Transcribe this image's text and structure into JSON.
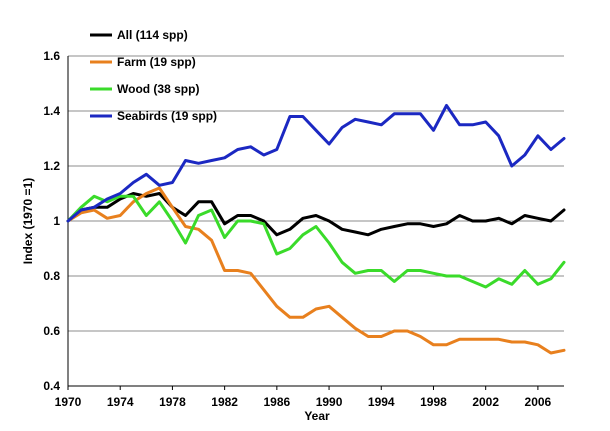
{
  "chart_data": {
    "type": "line",
    "xlabel": "Year",
    "ylabel": "Index (1970 =1)",
    "xlim": [
      1970,
      2008
    ],
    "ylim": [
      0.4,
      1.6
    ],
    "x_ticks": [
      "1970",
      "1974",
      "1978",
      "1982",
      "1986",
      "1990",
      "1994",
      "1998",
      "2002",
      "2006"
    ],
    "y_ticks": [
      "0.4",
      "0.6",
      "0.8",
      "1",
      "1.2",
      "1.4",
      "1.6"
    ],
    "grid": "horizontal",
    "legend_position": "top-left",
    "x": [
      1970,
      1971,
      1972,
      1973,
      1974,
      1975,
      1976,
      1977,
      1978,
      1979,
      1980,
      1981,
      1982,
      1983,
      1984,
      1985,
      1986,
      1987,
      1988,
      1989,
      1990,
      1991,
      1992,
      1993,
      1994,
      1995,
      1996,
      1997,
      1998,
      1999,
      2000,
      2001,
      2002,
      2003,
      2004,
      2005,
      2006,
      2007,
      2008
    ],
    "series": [
      {
        "name": "All (114 spp)",
        "color": "#000000",
        "values": [
          1.0,
          1.04,
          1.05,
          1.05,
          1.08,
          1.1,
          1.09,
          1.1,
          1.05,
          1.02,
          1.07,
          1.07,
          0.99,
          1.02,
          1.02,
          1.0,
          0.95,
          0.97,
          1.01,
          1.02,
          1.0,
          0.97,
          0.96,
          0.95,
          0.97,
          0.98,
          0.99,
          0.99,
          0.98,
          0.99,
          1.02,
          1.0,
          1.0,
          1.01,
          0.99,
          1.02,
          1.01,
          1.0,
          1.04
        ]
      },
      {
        "name": "Farm (19 spp)",
        "color": "#E8801E",
        "values": [
          1.0,
          1.03,
          1.04,
          1.01,
          1.02,
          1.07,
          1.1,
          1.12,
          1.05,
          0.98,
          0.97,
          0.93,
          0.82,
          0.82,
          0.81,
          0.75,
          0.69,
          0.65,
          0.65,
          0.68,
          0.69,
          0.65,
          0.61,
          0.58,
          0.58,
          0.6,
          0.6,
          0.58,
          0.55,
          0.55,
          0.57,
          0.57,
          0.57,
          0.57,
          0.56,
          0.56,
          0.55,
          0.52,
          0.53
        ]
      },
      {
        "name": "Wood (38 spp)",
        "color": "#3ADB2A",
        "values": [
          1.0,
          1.05,
          1.09,
          1.07,
          1.09,
          1.09,
          1.02,
          1.07,
          1.0,
          0.92,
          1.02,
          1.04,
          0.94,
          1.0,
          1.0,
          0.99,
          0.88,
          0.9,
          0.95,
          0.98,
          0.92,
          0.85,
          0.81,
          0.82,
          0.82,
          0.78,
          0.82,
          0.82,
          0.81,
          0.8,
          0.8,
          0.78,
          0.76,
          0.79,
          0.77,
          0.82,
          0.77,
          0.79,
          0.85
        ]
      },
      {
        "name": "Seabirds (19 spp)",
        "color": "#1B28C2",
        "values": [
          1.0,
          1.04,
          1.05,
          1.08,
          1.1,
          1.14,
          1.17,
          1.13,
          1.14,
          1.22,
          1.21,
          1.22,
          1.23,
          1.26,
          1.27,
          1.24,
          1.26,
          1.38,
          1.38,
          1.33,
          1.28,
          1.34,
          1.37,
          1.36,
          1.35,
          1.39,
          1.39,
          1.39,
          1.33,
          1.42,
          1.35,
          1.35,
          1.36,
          1.31,
          1.2,
          1.24,
          1.31,
          1.26,
          1.3
        ]
      }
    ]
  }
}
